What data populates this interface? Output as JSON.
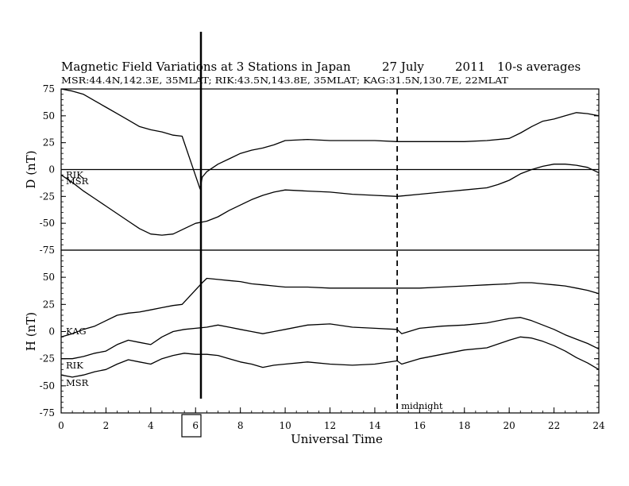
{
  "chart_data": {
    "type": "line",
    "title": "Magnetic Field Variations at 3 Stations in Japan",
    "date": "27 July",
    "year": "2011",
    "averaging": "10-s averages",
    "stations_line": "MSR:44.4N,142.3E, 35MLAT;  RIK:43.5N,143.8E, 35MLAT;  KAG:31.5N,130.7E, 22MLAT",
    "xlabel": "Universal Time",
    "xlim": [
      0,
      24
    ],
    "xticks": [
      "0",
      "2",
      "4",
      "6",
      "8",
      "10",
      "12",
      "14",
      "16",
      "18",
      "20",
      "22",
      "24"
    ],
    "midnight": {
      "x": 15,
      "label": "midnight"
    },
    "panels": [
      {
        "ylabel": "D (nT)",
        "ylim": [
          -75,
          75
        ],
        "yticks": [
          "75",
          "50",
          "25",
          "0",
          "-25",
          "-50",
          "-75"
        ],
        "zero_line": true,
        "series": [
          {
            "label_lines": [
              "RIK"
            ],
            "x": [
              0,
              0.5,
              1,
              1.5,
              2,
              2.5,
              3,
              3.5,
              4,
              4.5,
              5,
              5.4,
              6.2,
              6.3,
              6.5,
              7,
              7.5,
              8,
              8.5,
              9,
              9.5,
              10,
              11,
              12,
              13,
              14,
              15,
              16,
              17,
              18,
              19,
              20,
              20.5,
              21,
              21.5,
              22,
              22.5,
              23,
              23.5,
              24
            ],
            "y": [
              75,
              73,
              70,
              64,
              58,
              52,
              46,
              40,
              37,
              35,
              32,
              31,
              -18,
              -7,
              -2,
              5,
              10,
              15,
              18,
              20,
              23,
              27,
              28,
              27,
              27,
              27,
              26,
              26,
              26,
              26,
              27,
              29,
              34,
              40,
              45,
              47,
              50,
              53,
              52,
              50
            ]
          },
          {
            "label_lines": [
              "MSR"
            ],
            "x": [
              0,
              0.5,
              1,
              1.5,
              2,
              2.5,
              3,
              3.5,
              4,
              4.5,
              5,
              5.5,
              6,
              6.5,
              7,
              7.5,
              8,
              8.5,
              9,
              9.5,
              10,
              11,
              12,
              13,
              14,
              15,
              16,
              17,
              18,
              19,
              19.5,
              20,
              20.5,
              21,
              21.5,
              22,
              22.5,
              23,
              23.5,
              24
            ],
            "y": [
              -5,
              -12,
              -20,
              -27,
              -34,
              -41,
              -48,
              -55,
              -60,
              -61,
              -60,
              -55,
              -50,
              -48,
              -44,
              -38,
              -33,
              -28,
              -24,
              -21,
              -19,
              -20,
              -21,
              -23,
              -24,
              -25,
              -23,
              -21,
              -19,
              -17,
              -14,
              -10,
              -4,
              0,
              3,
              5,
              5,
              4,
              2,
              -3
            ]
          }
        ]
      },
      {
        "ylabel": "H (nT)",
        "ylim": [
          -75,
          75
        ],
        "yticks": [
          "50",
          "25",
          "0",
          "-25",
          "-50",
          "-75"
        ],
        "zero_line": false,
        "series": [
          {
            "label_lines": [
              "KAG"
            ],
            "x": [
              0,
              0.5,
              1,
              1.5,
              2,
              2.5,
              3,
              3.5,
              4,
              4.5,
              5,
              5.4,
              6.3,
              6.5,
              7,
              7.5,
              8,
              8.5,
              9,
              9.5,
              10,
              11,
              12,
              13,
              14,
              15,
              16,
              17,
              18,
              19,
              20,
              20.5,
              21,
              21.5,
              22,
              22.5,
              23,
              23.5,
              24
            ],
            "y": [
              -5,
              -2,
              2,
              5,
              10,
              15,
              17,
              18,
              20,
              22,
              24,
              25,
              45,
              49,
              48,
              47,
              46,
              44,
              43,
              42,
              41,
              41,
              40,
              40,
              40,
              40,
              40,
              41,
              42,
              43,
              44,
              45,
              45,
              44,
              43,
              42,
              40,
              38,
              35
            ]
          },
          {
            "label_lines": [
              "RIK"
            ],
            "x": [
              0,
              0.5,
              1,
              1.5,
              2,
              2.5,
              3,
              3.5,
              4,
              4.5,
              5,
              5.5,
              6,
              6.5,
              7,
              7.5,
              8,
              8.5,
              9,
              9.5,
              10,
              11,
              12,
              13,
              14,
              15,
              15.2,
              16,
              17,
              18,
              19,
              20,
              20.5,
              21,
              21.5,
              22,
              22.5,
              23,
              23.5,
              24
            ],
            "y": [
              -25,
              -25,
              -23,
              -20,
              -18,
              -12,
              -8,
              -10,
              -12,
              -5,
              0,
              2,
              3,
              4,
              6,
              4,
              2,
              0,
              -2,
              0,
              2,
              6,
              7,
              4,
              3,
              2,
              -2,
              3,
              5,
              6,
              8,
              12,
              13,
              10,
              6,
              2,
              -3,
              -7,
              -11,
              -16
            ]
          },
          {
            "label_lines": [
              "MSR"
            ],
            "x": [
              0,
              0.5,
              1,
              1.5,
              2,
              2.5,
              3,
              3.5,
              4,
              4.5,
              5,
              5.5,
              6,
              6.5,
              7,
              7.5,
              8,
              8.5,
              9,
              9.5,
              10,
              11,
              12,
              13,
              14,
              15,
              15.2,
              16,
              17,
              18,
              19,
              20,
              20.5,
              21,
              21.5,
              22,
              22.5,
              23,
              23.5,
              24
            ],
            "y": [
              -40,
              -42,
              -40,
              -37,
              -35,
              -30,
              -26,
              -28,
              -30,
              -25,
              -22,
              -20,
              -21,
              -21,
              -22,
              -25,
              -28,
              -30,
              -33,
              -31,
              -30,
              -28,
              -30,
              -31,
              -30,
              -27,
              -30,
              -25,
              -21,
              -17,
              -15,
              -8,
              -5,
              -6,
              -9,
              -13,
              -18,
              -24,
              -29,
              -35
            ]
          }
        ]
      }
    ]
  }
}
